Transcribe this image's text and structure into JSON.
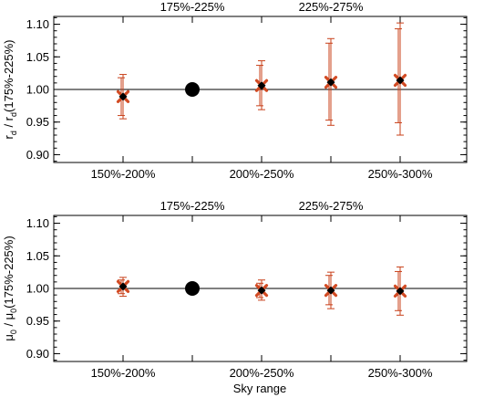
{
  "chart_data": [
    {
      "type": "scatter",
      "ylabel_main": "r",
      "ylabel_sub": "d",
      "ylabel_mid": " / r",
      "ylabel_sub2": "d",
      "ylabel_tail": "(175%-225%)",
      "xlabel": "",
      "ylim": [
        0.888,
        1.112
      ],
      "yticks": [
        "0.90",
        "0.95",
        "1.00",
        "1.05",
        "1.10"
      ],
      "ytick_values": [
        0.9,
        0.95,
        1.0,
        1.05,
        1.1
      ],
      "bottom_labels": [
        "150%-200%",
        "200%-250%",
        "250%-300%"
      ],
      "top_labels": [
        "175%-225%",
        "225%-275%"
      ],
      "reference_line": 1.0,
      "x_positions": [
        1,
        2,
        3,
        4,
        5
      ],
      "reference_point": {
        "x": 2,
        "y": 1.0
      },
      "series": [
        {
          "x": 1,
          "y": 0.989,
          "err_inner": [
            0.96,
            1.018
          ],
          "err_outer": [
            0.955,
            1.023
          ]
        },
        {
          "x": 3,
          "y": 1.006,
          "err_inner": [
            0.975,
            1.037
          ],
          "err_outer": [
            0.969,
            1.044
          ]
        },
        {
          "x": 4,
          "y": 1.011,
          "err_inner": [
            0.953,
            1.071
          ],
          "err_outer": [
            0.945,
            1.078
          ]
        },
        {
          "x": 5,
          "y": 1.014,
          "err_inner": [
            0.949,
            1.093
          ],
          "err_outer": [
            0.93,
            1.102
          ]
        }
      ]
    },
    {
      "type": "scatter",
      "ylabel_main": "μ",
      "ylabel_sub": "0",
      "ylabel_mid": " / μ",
      "ylabel_sub2": "0",
      "ylabel_tail": "(175%-225%)",
      "xlabel": "Sky range",
      "ylim": [
        0.888,
        1.112
      ],
      "yticks": [
        "0.90",
        "0.95",
        "1.00",
        "1.05",
        "1.10"
      ],
      "ytick_values": [
        0.9,
        0.95,
        1.0,
        1.05,
        1.1
      ],
      "bottom_labels": [
        "150%-200%",
        "200%-250%",
        "250%-300%"
      ],
      "top_labels": [
        "175%-225%",
        "225%-275%"
      ],
      "reference_line": 1.0,
      "x_positions": [
        1,
        2,
        3,
        4,
        5
      ],
      "reference_point": {
        "x": 2,
        "y": 1.0
      },
      "series": [
        {
          "x": 1,
          "y": 1.003,
          "err_inner": [
            0.992,
            1.013
          ],
          "err_outer": [
            0.988,
            1.017
          ]
        },
        {
          "x": 3,
          "y": 0.997,
          "err_inner": [
            0.986,
            1.008
          ],
          "err_outer": [
            0.982,
            1.013
          ]
        },
        {
          "x": 4,
          "y": 0.997,
          "err_inner": [
            0.975,
            1.02
          ],
          "err_outer": [
            0.969,
            1.025
          ]
        },
        {
          "x": 5,
          "y": 0.996,
          "err_inner": [
            0.966,
            1.026
          ],
          "err_outer": [
            0.959,
            1.033
          ]
        }
      ]
    }
  ],
  "colors": {
    "errorbar": "#c8401a",
    "marker_fill": "#d24a22",
    "marker_edge": "#000000",
    "reference_point": "#000000",
    "axis": "#000000"
  }
}
